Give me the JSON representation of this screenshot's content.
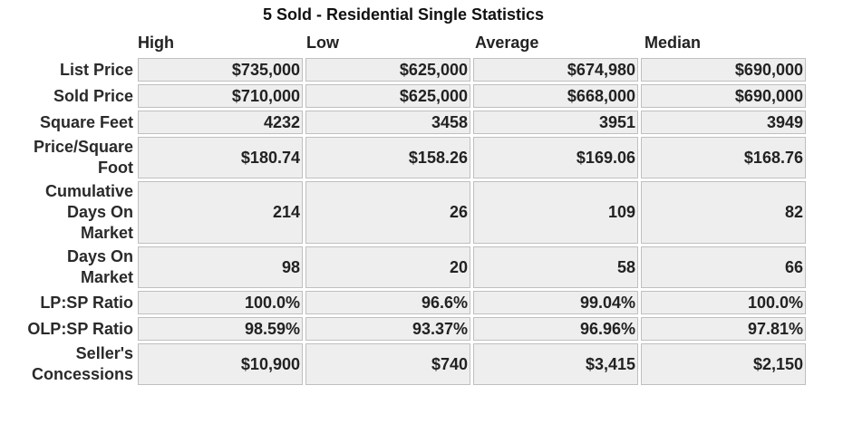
{
  "title": "5 Sold - Residential Single Statistics",
  "columns": [
    "High",
    "Low",
    "Average",
    "Median"
  ],
  "rows": [
    {
      "label": "List Price",
      "values": [
        "$735,000",
        "$625,000",
        "$674,980",
        "$690,000"
      ]
    },
    {
      "label": "Sold Price",
      "values": [
        "$710,000",
        "$625,000",
        "$668,000",
        "$690,000"
      ]
    },
    {
      "label": "Square Feet",
      "values": [
        "4232",
        "3458",
        "3951",
        "3949"
      ]
    },
    {
      "label": "Price/Square Foot",
      "values": [
        "$180.74",
        "$158.26",
        "$169.06",
        "$168.76"
      ]
    },
    {
      "label": "Cumulative Days On Market",
      "values": [
        "214",
        "26",
        "109",
        "82"
      ]
    },
    {
      "label": "Days On Market",
      "values": [
        "98",
        "20",
        "58",
        "66"
      ]
    },
    {
      "label": "LP:SP Ratio",
      "values": [
        "100.0%",
        "96.6%",
        "99.04%",
        "100.0%"
      ]
    },
    {
      "label": "OLP:SP Ratio",
      "values": [
        "98.59%",
        "93.37%",
        "96.96%",
        "97.81%"
      ]
    },
    {
      "label": "Seller's Concessions",
      "values": [
        "$10,900",
        "$740",
        "$3,415",
        "$2,150"
      ]
    }
  ]
}
